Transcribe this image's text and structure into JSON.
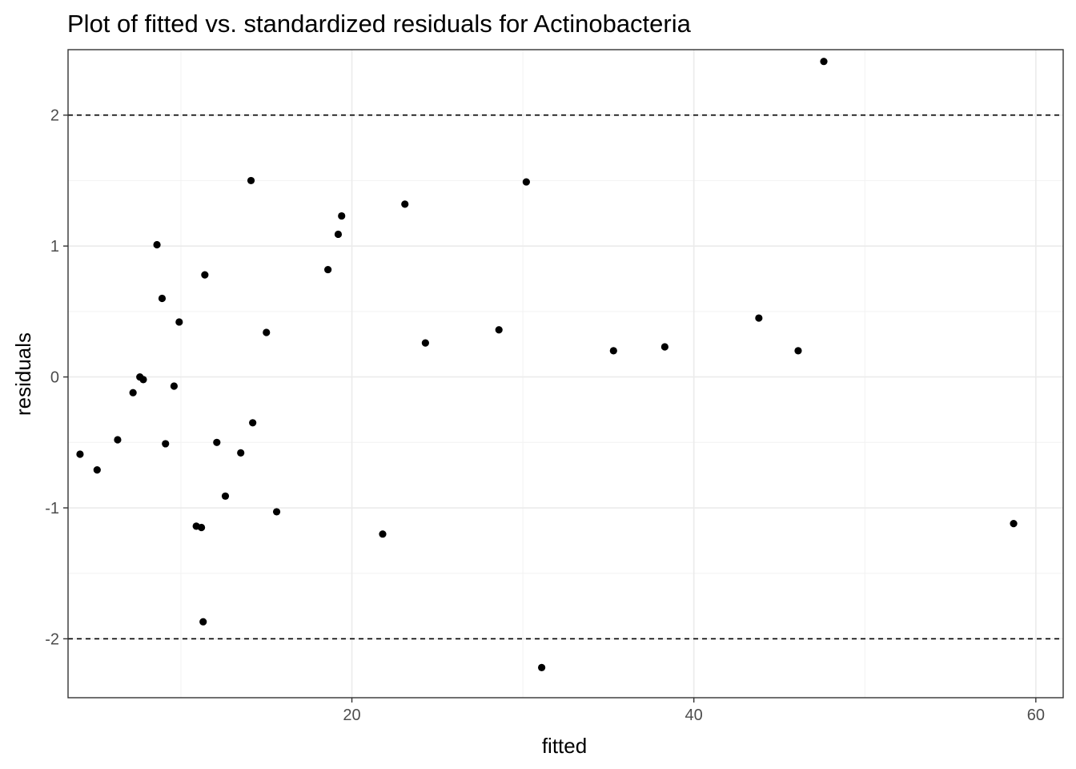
{
  "chart_data": {
    "type": "scatter",
    "title": "Plot of fitted vs. standardized residuals for Actinobacteria",
    "xlabel": "fitted",
    "ylabel": "residuals",
    "xlim": [
      3.4,
      61.6
    ],
    "ylim": [
      -2.45,
      2.5
    ],
    "x_ticks": [
      20,
      40,
      60
    ],
    "y_ticks": [
      -2,
      -1,
      0,
      1,
      2
    ],
    "x_tick_labels": [
      "20",
      "40",
      "60"
    ],
    "y_tick_labels": [
      "-2",
      "-1",
      "0",
      "1",
      "2"
    ],
    "reference_lines": [
      2,
      -2
    ],
    "grid": true,
    "points": [
      {
        "x": 4.1,
        "y": -0.59
      },
      {
        "x": 5.1,
        "y": -0.71
      },
      {
        "x": 6.3,
        "y": -0.48
      },
      {
        "x": 7.2,
        "y": -0.12
      },
      {
        "x": 7.6,
        "y": 0.0
      },
      {
        "x": 7.8,
        "y": -0.02
      },
      {
        "x": 8.6,
        "y": 1.01
      },
      {
        "x": 8.9,
        "y": 0.6
      },
      {
        "x": 9.1,
        "y": -0.51
      },
      {
        "x": 9.6,
        "y": -0.07
      },
      {
        "x": 9.9,
        "y": 0.42
      },
      {
        "x": 10.9,
        "y": -1.14
      },
      {
        "x": 11.2,
        "y": -1.15
      },
      {
        "x": 11.3,
        "y": -1.87
      },
      {
        "x": 11.4,
        "y": 0.78
      },
      {
        "x": 12.1,
        "y": -0.5
      },
      {
        "x": 12.6,
        "y": -0.91
      },
      {
        "x": 13.5,
        "y": -0.58
      },
      {
        "x": 14.1,
        "y": 1.5
      },
      {
        "x": 14.2,
        "y": -0.35
      },
      {
        "x": 15.0,
        "y": 0.34
      },
      {
        "x": 15.6,
        "y": -1.03
      },
      {
        "x": 18.6,
        "y": 0.82
      },
      {
        "x": 19.2,
        "y": 1.09
      },
      {
        "x": 19.4,
        "y": 1.23
      },
      {
        "x": 21.8,
        "y": -1.2
      },
      {
        "x": 23.1,
        "y": 1.32
      },
      {
        "x": 24.3,
        "y": 0.26
      },
      {
        "x": 28.6,
        "y": 0.36
      },
      {
        "x": 30.2,
        "y": 1.49
      },
      {
        "x": 31.1,
        "y": -2.22
      },
      {
        "x": 35.3,
        "y": 0.2
      },
      {
        "x": 38.3,
        "y": 0.23
      },
      {
        "x": 43.8,
        "y": 0.45
      },
      {
        "x": 46.1,
        "y": 0.2
      },
      {
        "x": 47.6,
        "y": 2.41
      },
      {
        "x": 58.7,
        "y": -1.12
      }
    ]
  }
}
